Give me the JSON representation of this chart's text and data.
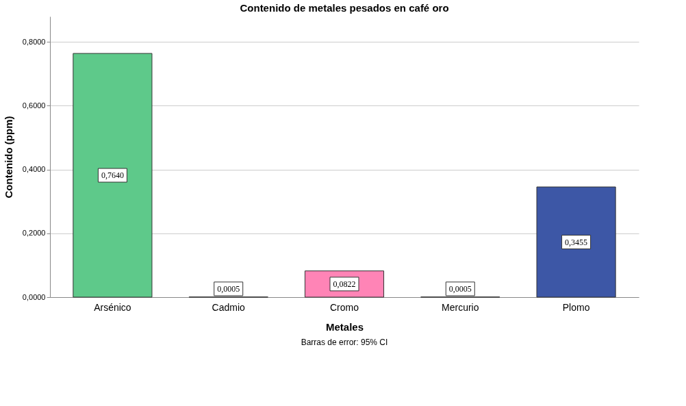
{
  "chart_data": {
    "type": "bar",
    "title": "Contenido de metales pesados en café oro",
    "xlabel": "Metales",
    "ylabel": "Contenido (ppm)",
    "categories": [
      "Arsénico",
      "Cadmio",
      "Cromo",
      "Mercurio",
      "Plomo"
    ],
    "values": [
      0.764,
      0.0005,
      0.0822,
      0.0005,
      0.3455
    ],
    "colors": [
      "#5ec98a",
      "#7f7f7f",
      "#ff84b6",
      "#7f7f7f",
      "#3d57a6"
    ],
    "value_labels": [
      "0,7640",
      "0,0005",
      "0,0822",
      "0,0005",
      "0,3455"
    ],
    "ylim": [
      0,
      0.88
    ],
    "yticks": [
      {
        "value": 0,
        "label": "0,0000"
      },
      {
        "value": 0.2,
        "label": "0,2000"
      },
      {
        "value": 0.4,
        "label": "0,4000"
      },
      {
        "value": 0.6,
        "label": "0,6000"
      },
      {
        "value": 0.8,
        "label": "0,8000"
      }
    ],
    "grid": "y",
    "annotations": [
      "Barras de error: 95% CI"
    ]
  }
}
